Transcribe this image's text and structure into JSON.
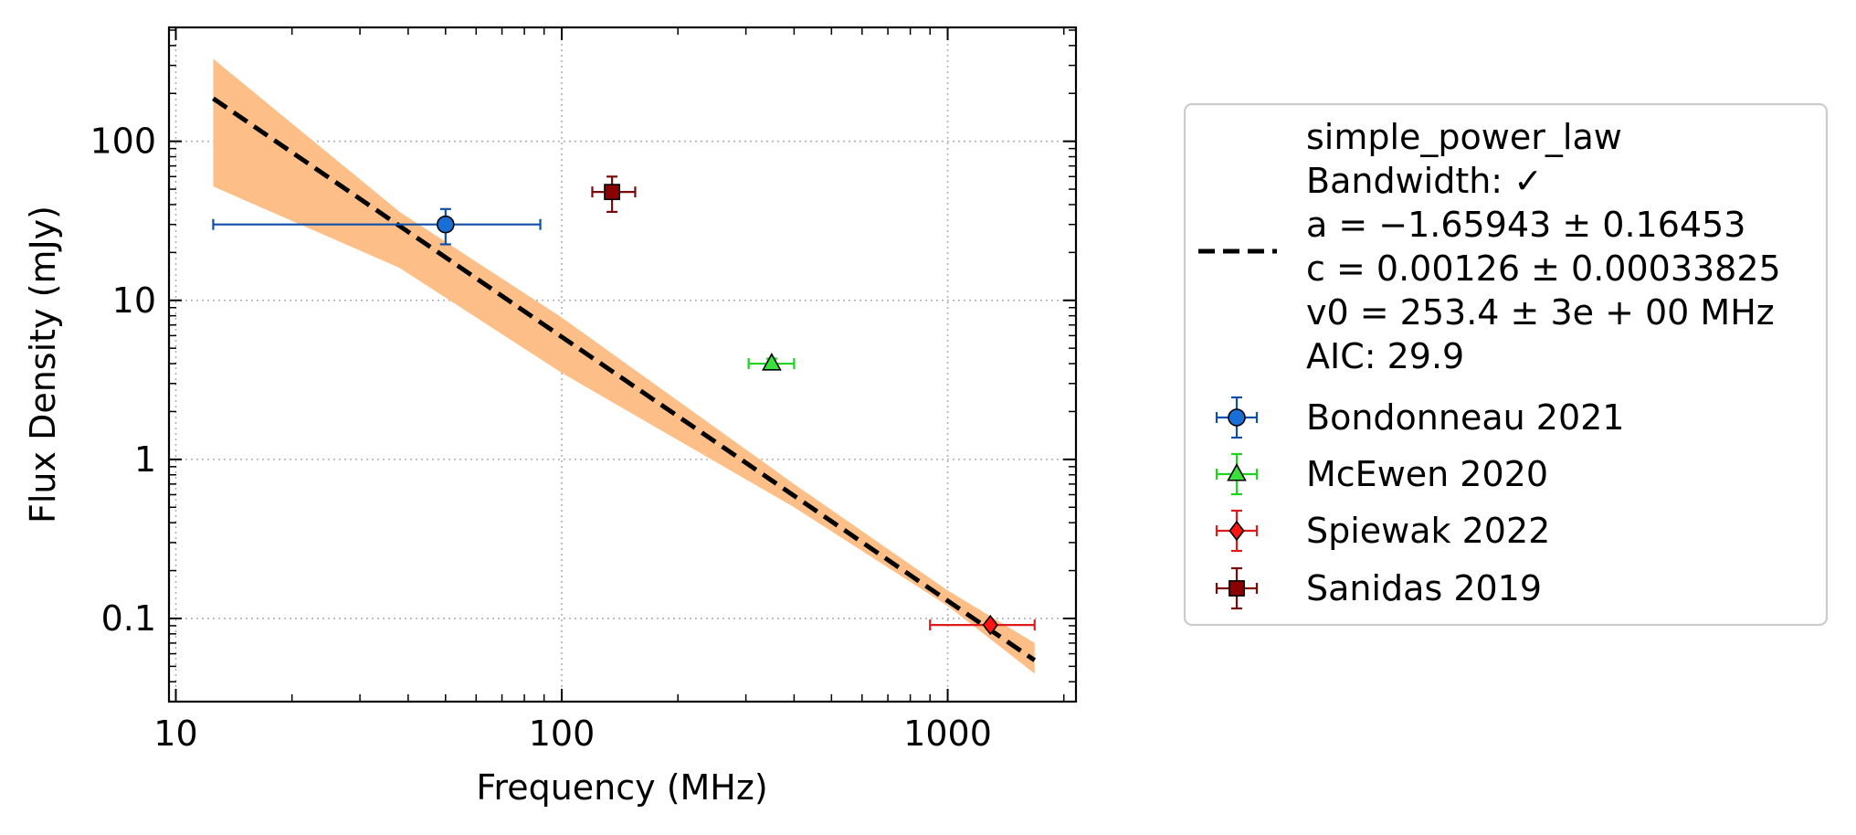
{
  "chart_data": {
    "type": "scatter",
    "xlabel": "Frequency (MHz)",
    "ylabel": "Flux Density (mJy)",
    "xscale": "log",
    "yscale": "log",
    "xlim": [
      9.6,
      2150
    ],
    "ylim": [
      0.03,
      520
    ],
    "grid": true,
    "x_ticks": [
      {
        "value": 10,
        "label": "10"
      },
      {
        "value": 100,
        "label": "100"
      },
      {
        "value": 1000,
        "label": "1000"
      }
    ],
    "y_ticks": [
      {
        "value": 0.1,
        "label": "0.1"
      },
      {
        "value": 1,
        "label": "1"
      },
      {
        "value": 10,
        "label": "10"
      },
      {
        "value": 100,
        "label": "100"
      }
    ],
    "legend_placement": "outside-right",
    "fit": {
      "model": "simple_power_law",
      "lines": [
        "simple_power_law",
        "Bandwidth: ✓",
        "a = −1.65943 ± 0.16453",
        "c = 0.00126 ± 0.00033825",
        "v0 = 253.4 ± 3e + 00 MHz",
        "AIC: 29.9"
      ],
      "a": -1.65943,
      "c": 0.00126,
      "v0": 253.4,
      "x_range": [
        12.5,
        1680
      ],
      "color": "#000000",
      "band_color": "#fdbf87",
      "band": [
        {
          "x": 12.5,
          "lo": 52,
          "hi": 330
        },
        {
          "x": 38,
          "lo": 16,
          "hi": 36
        },
        {
          "x": 100,
          "lo": 3.5,
          "hi": 7.8
        },
        {
          "x": 400,
          "lo": 0.5,
          "hi": 0.7
        },
        {
          "x": 1000,
          "lo": 0.12,
          "hi": 0.15
        },
        {
          "x": 1680,
          "lo": 0.045,
          "hi": 0.07
        }
      ]
    },
    "series": [
      {
        "name": "Bondonneau 2021",
        "marker": "circle",
        "color": "#1a6fd6",
        "edge": "#0f4fa8",
        "x": 50,
        "y": 30,
        "xerr": [
          12.5,
          88
        ],
        "yerr": [
          22.5,
          37.5
        ]
      },
      {
        "name": "McEwen 2020",
        "marker": "triangle",
        "color": "#3be13b",
        "edge": "#1fd31f",
        "x": 350,
        "y": 4.0,
        "xerr": [
          305,
          400
        ],
        "yerr": [
          3.7,
          4.3
        ]
      },
      {
        "name": "Spiewak 2022",
        "marker": "diamond",
        "color": "#ff1414",
        "edge": "#e01a1a",
        "x": 1290,
        "y": 0.091,
        "xerr": [
          900,
          1680
        ],
        "yerr": [
          0.087,
          0.095
        ]
      },
      {
        "name": "Sanidas 2019",
        "marker": "square",
        "color": "#8b0000",
        "edge": "#7a0a0a",
        "x": 135,
        "y": 48,
        "xerr": [
          120,
          155
        ],
        "yerr": [
          36,
          60
        ]
      }
    ]
  }
}
